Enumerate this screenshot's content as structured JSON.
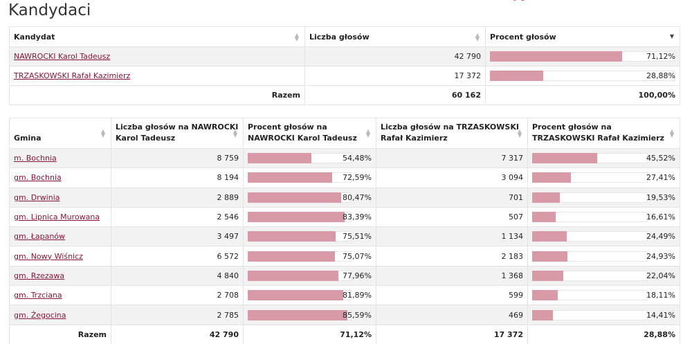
{
  "page": {
    "title": "Kandydaci"
  },
  "colors": {
    "bar": "#d99aa8",
    "link": "#8a1538"
  },
  "candidates_table": {
    "headers": {
      "candidate": "Kandydat",
      "votes": "Liczba głosów",
      "percent": "Procent głosów"
    },
    "rows": [
      {
        "name": "NAWROCKI Karol Tadeusz",
        "votes": "42 790",
        "percent": "71,12%",
        "fraction": 0.7112
      },
      {
        "name": "TRZASKOWSKI Rafał Kazimierz",
        "votes": "17 372",
        "percent": "28,88%",
        "fraction": 0.2888
      }
    ],
    "total": {
      "label": "Razem",
      "votes": "60 162",
      "percent": "100,00%"
    }
  },
  "municipalities_table": {
    "headers": {
      "gmina": "Gmina",
      "votes_a": "Liczba głosów na NAWROCKI Karol Tadeusz",
      "percent_a": "Procent głosów na NAWROCKI Karol Tadeusz",
      "votes_b": "Liczba głosów na TRZASKOWSKI Rafał Kazimierz",
      "percent_b": "Procent głosów na TRZASKOWSKI Rafał Kazimierz"
    },
    "rows": [
      {
        "gmina": "m. Bochnia",
        "votes_a": "8 759",
        "percent_a": "54,48%",
        "fa": 0.5448,
        "votes_b": "7 317",
        "percent_b": "45,52%",
        "fb": 0.4552
      },
      {
        "gmina": "gm. Bochnia",
        "votes_a": "8 194",
        "percent_a": "72,59%",
        "fa": 0.7259,
        "votes_b": "3 094",
        "percent_b": "27,41%",
        "fb": 0.2741
      },
      {
        "gmina": "gm. Drwinia",
        "votes_a": "2 889",
        "percent_a": "80,47%",
        "fa": 0.8047,
        "votes_b": "701",
        "percent_b": "19,53%",
        "fb": 0.1953
      },
      {
        "gmina": "gm. Lipnica Murowana",
        "votes_a": "2 546",
        "percent_a": "83,39%",
        "fa": 0.8339,
        "votes_b": "507",
        "percent_b": "16,61%",
        "fb": 0.1661
      },
      {
        "gmina": "gm. Łapanów",
        "votes_a": "3 497",
        "percent_a": "75,51%",
        "fa": 0.7551,
        "votes_b": "1 134",
        "percent_b": "24,49%",
        "fb": 0.2449
      },
      {
        "gmina": "gm. Nowy Wiśnicz",
        "votes_a": "6 572",
        "percent_a": "75,07%",
        "fa": 0.7507,
        "votes_b": "2 183",
        "percent_b": "24,93%",
        "fb": 0.2493
      },
      {
        "gmina": "gm. Rzezawa",
        "votes_a": "4 840",
        "percent_a": "77,96%",
        "fa": 0.7796,
        "votes_b": "1 368",
        "percent_b": "22,04%",
        "fb": 0.2204
      },
      {
        "gmina": "gm. Trzciana",
        "votes_a": "2 708",
        "percent_a": "81,89%",
        "fa": 0.8189,
        "votes_b": "599",
        "percent_b": "18,11%",
        "fb": 0.1811
      },
      {
        "gmina": "gm. Żegocina",
        "votes_a": "2 785",
        "percent_a": "85,59%",
        "fa": 0.8559,
        "votes_b": "469",
        "percent_b": "14,41%",
        "fb": 0.1441
      }
    ],
    "total": {
      "label": "Razem",
      "votes_a": "42 790",
      "percent_a": "71,12%",
      "votes_b": "17 372",
      "percent_b": "28,88%"
    }
  }
}
